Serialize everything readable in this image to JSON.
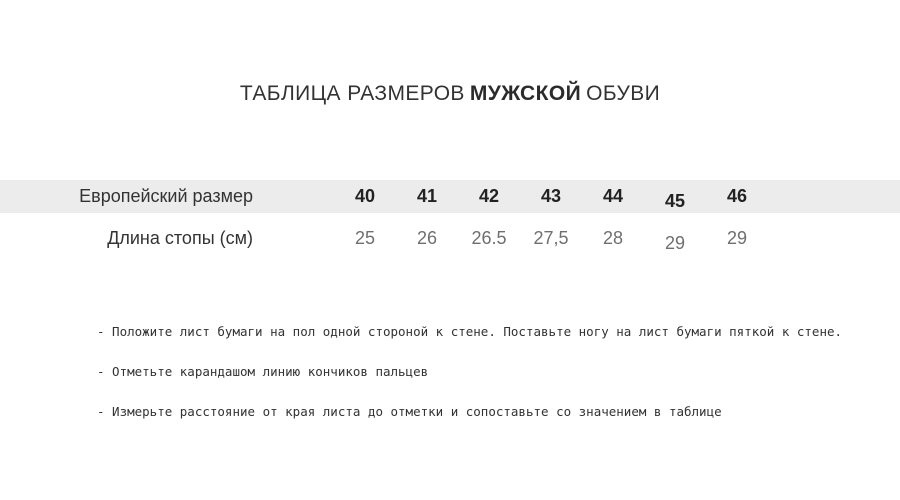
{
  "title": {
    "prefix": "ТАБЛИЦА РАЗМЕРОВ",
    "highlight": "МУЖСКОЙ",
    "suffix": "ОБУВИ"
  },
  "size_table": {
    "rows": [
      {
        "label": "Европейский размер",
        "values": [
          "40",
          "41",
          "42",
          "43",
          "44",
          "45",
          "46"
        ]
      },
      {
        "label": "Длина стопы (см)",
        "values": [
          "25",
          "26",
          "26.5",
          "27,5",
          "28",
          "29",
          "29"
        ]
      }
    ]
  },
  "instructions": {
    "items": [
      "- Положите лист бумаги на пол одной стороной к стене. Поставьте ногу на лист бумаги пяткой к стене.",
      "- Отметьте карандашом линию кончиков пальцев",
      "- Измерьте расстояние от края листа до отметки и сопоставьте со значением в таблице"
    ]
  },
  "colors": {
    "header_row_background": "#ececec",
    "primary_text": "#333333",
    "bold_number_text": "#222222",
    "secondary_number_text": "#6f6f6f"
  }
}
